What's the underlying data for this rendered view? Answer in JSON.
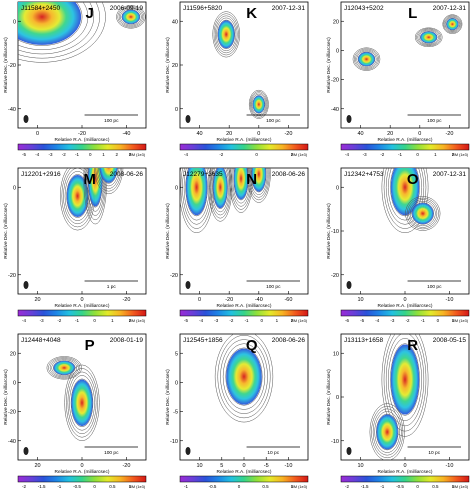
{
  "chart_data": [
    {
      "type": "heatmap",
      "source_name": "J11584+2450",
      "date": "2006-09-19",
      "panel_letter": "J",
      "ylabel": "Relative Dec. (milliarcsec)",
      "xlabel": "Relative R.A. (milliarcsec)",
      "xticks": [
        "0",
        "-20",
        "-40"
      ],
      "yticks": [
        "0",
        "-20",
        "-40"
      ],
      "scalebar": "100 pc",
      "colorbar_ticks": [
        "-5",
        "-4",
        "-3",
        "-2",
        "-1",
        "0",
        "1",
        "2",
        "3"
      ],
      "colorbar_unit": "RM (1e3)",
      "components": [
        {
          "x": -2,
          "y": 2,
          "w": 22,
          "h": 16
        },
        {
          "x": -42,
          "y": 2,
          "w": 5,
          "h": 4
        }
      ]
    },
    {
      "type": "heatmap",
      "source_name": "J11596+5820",
      "date": "2007-12-31",
      "panel_letter": "K",
      "ylabel": "Relative Dec. (milliarcsec)",
      "xlabel": "Relative R.A. (milliarcsec)",
      "xticks": [
        "40",
        "20",
        "0",
        "-20"
      ],
      "yticks": [
        "40",
        "20",
        "0"
      ],
      "scalebar": "100 pc",
      "colorbar_ticks": [
        "-4",
        "-2",
        "0",
        "2"
      ],
      "colorbar_unit": "RM (1e3)",
      "components": [
        {
          "x": 22,
          "y": 34,
          "w": 7,
          "h": 8
        },
        {
          "x": 0,
          "y": 2,
          "w": 5,
          "h": 5
        }
      ]
    },
    {
      "type": "heatmap",
      "source_name": "J12043+5202",
      "date": "2007-12-31",
      "panel_letter": "L",
      "ylabel": "Relative Dec. (milliarcsec)",
      "xlabel": "Relative R.A. (milliarcsec)",
      "xticks": [
        "40",
        "20",
        "0",
        "-20"
      ],
      "yticks": [
        "20",
        "0",
        "-20",
        "-40"
      ],
      "scalebar": "100 pc",
      "colorbar_ticks": [
        "-4",
        "-3",
        "-2",
        "-1",
        "0",
        "1",
        "2"
      ],
      "colorbar_unit": "RM (1e3)",
      "components": [
        {
          "x": 36,
          "y": -6,
          "w": 7,
          "h": 6
        },
        {
          "x": -6,
          "y": 9,
          "w": 7,
          "h": 5
        },
        {
          "x": -22,
          "y": 18,
          "w": 5,
          "h": 5
        }
      ]
    },
    {
      "type": "heatmap",
      "source_name": "J12201+2916",
      "date": "2008-06-26",
      "panel_letter": "M",
      "ylabel": "Relative Dec. (milliarcsec)",
      "xlabel": "Relative R.A. (milliarcsec)",
      "xticks": [
        "20",
        "0",
        "-20"
      ],
      "yticks": [
        "0",
        "-20"
      ],
      "scalebar": "1 pc",
      "colorbar_ticks": [
        "-4",
        "-3",
        "-2",
        "-1",
        "0",
        "1",
        "2"
      ],
      "colorbar_unit": "RM (1e3)",
      "components": [
        {
          "x": 2,
          "y": -2,
          "w": 6,
          "h": 6
        },
        {
          "x": -6,
          "y": 2,
          "w": 4,
          "h": 8
        },
        {
          "x": -12,
          "y": 5,
          "w": 5,
          "h": 5
        }
      ]
    },
    {
      "type": "heatmap",
      "source_name": "J12279+3635",
      "date": "2008-06-26",
      "panel_letter": "N",
      "ylabel": "Relative Dec. (milliarcsec)",
      "xlabel": "Relative R.A. (milliarcsec)",
      "xticks": [
        "0",
        "-20",
        "-40",
        "-60"
      ],
      "yticks": [
        "0",
        "-20"
      ],
      "scalebar": "100 pc",
      "colorbar_ticks": [
        "-5",
        "-4",
        "-3",
        "-2",
        "-1",
        "0",
        "1",
        "2"
      ],
      "colorbar_unit": "RM (1e3)",
      "components": [
        {
          "x": 2,
          "y": 0,
          "w": 9,
          "h": 8
        },
        {
          "x": -14,
          "y": 0,
          "w": 6,
          "h": 6
        },
        {
          "x": -28,
          "y": 2,
          "w": 6,
          "h": 6
        },
        {
          "x": -40,
          "y": 3,
          "w": 6,
          "h": 5
        }
      ]
    },
    {
      "type": "heatmap",
      "source_name": "J12342+4753",
      "date": "2007-12-31",
      "panel_letter": "O",
      "ylabel": "Relative Dec. (milliarcsec)",
      "xlabel": "Relative R.A. (milliarcsec)",
      "xticks": [
        "10",
        "0",
        "-10"
      ],
      "yticks": [
        "0",
        "-10",
        "-20"
      ],
      "scalebar": "100 pc",
      "colorbar_ticks": [
        "-6",
        "-5",
        "-4",
        "-3",
        "-2",
        "-1",
        "0",
        "1"
      ],
      "colorbar_unit": "RM (1e3)",
      "components": [
        {
          "x": 0,
          "y": 0,
          "w": 4,
          "h": 8
        },
        {
          "x": -4,
          "y": -6,
          "w": 3,
          "h": 3
        }
      ]
    },
    {
      "type": "heatmap",
      "source_name": "J12448+4048",
      "date": "2008-01-19",
      "panel_letter": "P",
      "ylabel": "Relative Dec. (milliarcsec)",
      "xlabel": "Relative R.A. (milliarcsec)",
      "xticks": [
        "20",
        "0",
        "-20"
      ],
      "yticks": [
        "20",
        "0",
        "-20",
        "-40"
      ],
      "scalebar": "100 pc",
      "colorbar_ticks": [
        "-2",
        "-1.5",
        "-1",
        "-0.5",
        "0",
        "0.5",
        "1"
      ],
      "colorbar_unit": "RM (1e3)",
      "components": [
        {
          "x": 8,
          "y": 10,
          "w": 6,
          "h": 6
        },
        {
          "x": 0,
          "y": -14,
          "w": 6,
          "h": 20
        }
      ]
    },
    {
      "type": "heatmap",
      "source_name": "J12545+1856",
      "date": "2008-06-26",
      "panel_letter": "Q",
      "ylabel": "Relative Dec. (milliarcsec)",
      "xlabel": "Relative R.A. (milliarcsec)",
      "xticks": [
        "10",
        "5",
        "0",
        "-5",
        "-10"
      ],
      "yticks": [
        "5",
        "0",
        "-5",
        "-10"
      ],
      "scalebar": "10 pc",
      "colorbar_ticks": [
        "-1",
        "-0.5",
        "0",
        "0.5",
        "1"
      ],
      "colorbar_unit": "RM (1e3)",
      "components": [
        {
          "x": 0,
          "y": 1,
          "w": 5,
          "h": 6
        }
      ]
    },
    {
      "type": "heatmap",
      "source_name": "J13113+1658",
      "date": "2008-05-15",
      "panel_letter": "R",
      "ylabel": "Relative Dec. (milliarcsec)",
      "xlabel": "Relative R.A. (milliarcsec)",
      "xticks": [
        "10",
        "0",
        "-10"
      ],
      "yticks": [
        "10",
        "0",
        "-10"
      ],
      "scalebar": "10 pc",
      "colorbar_ticks": [
        "-2",
        "-1.5",
        "-1",
        "-0.5",
        "0",
        "0.5",
        "1"
      ],
      "colorbar_unit": "RM (1e3)",
      "components": [
        {
          "x": 0,
          "y": 4,
          "w": 4,
          "h": 10
        },
        {
          "x": 4,
          "y": -8,
          "w": 3,
          "h": 5
        }
      ]
    }
  ],
  "colors": {
    "cmap": [
      "#9b2bd6",
      "#6a3fd8",
      "#2a52d9",
      "#1d86e6",
      "#22c1e0",
      "#35d48a",
      "#90e03a",
      "#e3ea2a",
      "#f7b323",
      "#f25a1e",
      "#d41717"
    ],
    "contour": "#555555",
    "frame": "#000000"
  }
}
